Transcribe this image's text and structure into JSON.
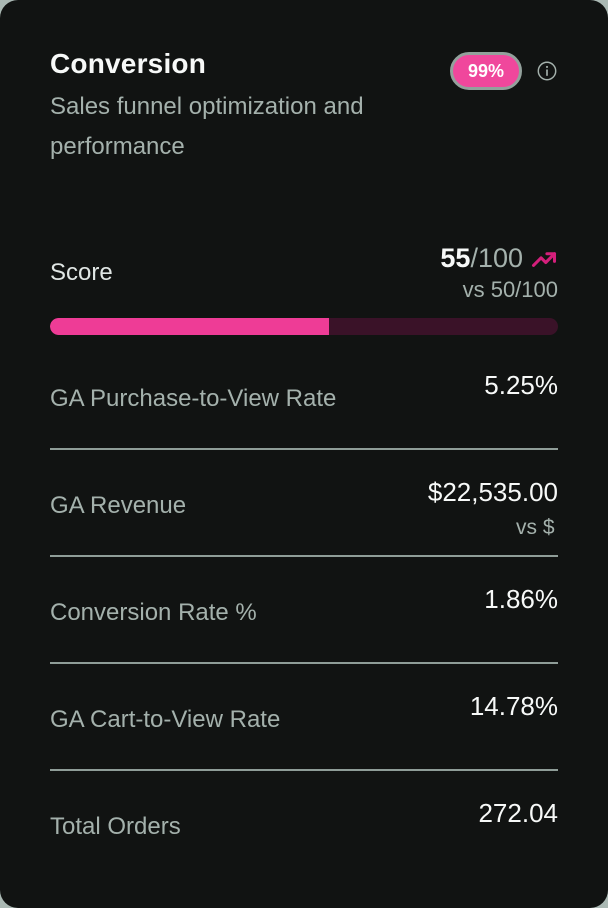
{
  "card": {
    "title": "Conversion",
    "subtitle": "Sales funnel optimization and performance",
    "badge_label": "99%",
    "score": {
      "label": "Score",
      "value": "55",
      "total": "/100",
      "comparison": "vs 50/100",
      "percent": 55,
      "trend": "up"
    },
    "metrics": [
      {
        "label": "GA Purchase-to-View Rate",
        "value": "5.25%"
      },
      {
        "label": "GA Revenue",
        "value": "$22,535.00",
        "secondary": "vs $"
      },
      {
        "label": "Conversion Rate %",
        "value": "1.86%"
      },
      {
        "label": "GA Cart-to-View Rate",
        "value": "14.78%"
      },
      {
        "label": "Total Orders",
        "value": "272.04"
      }
    ],
    "colors": {
      "accent_pink": "#f0479c",
      "progress_fill": "#ee3c96",
      "progress_track": "#3a1228",
      "trend_arrow": "#d41f7b",
      "card_background": "#111312",
      "muted_text": "#a4b1ac"
    }
  }
}
